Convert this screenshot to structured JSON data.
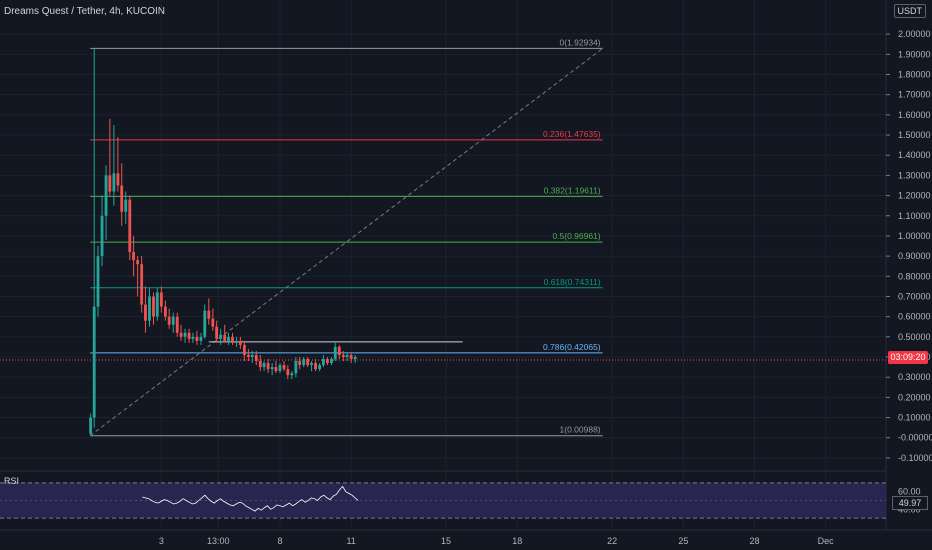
{
  "header": {
    "symbol_title": "Dreams Quest / Tether, 4h, KUCOIN",
    "currency": "USDT"
  },
  "price_axis": {
    "ticks": [
      "2.00000",
      "1.90000",
      "1.80000",
      "1.70000",
      "1.60000",
      "1.50000",
      "1.40000",
      "1.30000",
      "1.20000",
      "1.10000",
      "1.00000",
      "0.90000",
      "0.80000",
      "0.70000",
      "0.60000",
      "0.50000",
      "0.40000",
      "0.30000",
      "0.20000",
      "0.10000",
      "-0.00000",
      "-0.10000"
    ],
    "tick_values": [
      2.0,
      1.9,
      1.8,
      1.7,
      1.6,
      1.5,
      1.4,
      1.3,
      1.2,
      1.1,
      1.0,
      0.9,
      0.8,
      0.7,
      0.6,
      0.5,
      0.4,
      0.3,
      0.2,
      0.1,
      0.0,
      -0.1
    ],
    "last_price_tag": "03:09:20",
    "last_price": 0.385
  },
  "time_axis": {
    "labels": [
      {
        "text": "3",
        "x": 3
      },
      {
        "text": "13:00",
        "x": 5.4
      },
      {
        "text": "8",
        "x": 8
      },
      {
        "text": "11",
        "x": 11
      },
      {
        "text": "15",
        "x": 15
      },
      {
        "text": "18",
        "x": 18
      },
      {
        "text": "22",
        "x": 22
      },
      {
        "text": "25",
        "x": 25
      },
      {
        "text": "28",
        "x": 28
      },
      {
        "text": "Dec",
        "x": 31
      }
    ]
  },
  "colors": {
    "background": "#131722",
    "up": "#26a69a",
    "down": "#ef5350",
    "grid": "#1e222d",
    "rsi_fill": "#2a2451",
    "rsi_line": "#ffffff",
    "fib_0": "#787b86",
    "fib_236": "#f23645",
    "fib_382": "#4caf50",
    "fib_5": "#4caf50",
    "fib_618": "#089981",
    "fib_786": "#64b5f6",
    "fib_1": "#787b86"
  },
  "fib": {
    "x_start": 0.0,
    "x_end": 21.6,
    "levels": [
      {
        "label": "0(1.92934)",
        "value": 1.92934,
        "color": "#9598a1"
      },
      {
        "label": "0.236(1.47635)",
        "value": 1.47635,
        "color": "#f23645"
      },
      {
        "label": "0.382(1.19611)",
        "value": 1.19611,
        "color": "#4caf50"
      },
      {
        "label": "0.5(0.96961)",
        "value": 0.96961,
        "color": "#4caf50"
      },
      {
        "label": "0.618(0.74311)",
        "value": 0.74311,
        "color": "#089981"
      },
      {
        "label": "0.786(0.42065)",
        "value": 0.42065,
        "color": "#64b5f6"
      },
      {
        "label": "1(0.00988)",
        "value": 0.00988,
        "color": "#9598a1"
      }
    ],
    "trend_line": {
      "x1": 0.0,
      "y1": 0.00988,
      "x2": 21.6,
      "y2": 1.92934
    }
  },
  "extra_line": {
    "value": 0.475,
    "x_start": 5.0,
    "x_end": 15.7
  },
  "rsi": {
    "label": "RSI",
    "ticks": [
      "60.00",
      "40.00"
    ],
    "tick_values": [
      60,
      40
    ],
    "current_tag": "49.97",
    "range": [
      20,
      80
    ],
    "band": [
      30,
      70
    ],
    "values": [
      54,
      53,
      52,
      50,
      48,
      47,
      49,
      51,
      50,
      48,
      46,
      47,
      49,
      52,
      50,
      48,
      46,
      47,
      50,
      53,
      56,
      52,
      49,
      47,
      50,
      52,
      49,
      47,
      45,
      44,
      46,
      48,
      47,
      44,
      42,
      40,
      38,
      41,
      39,
      42,
      44,
      40,
      42,
      45,
      44,
      43,
      45,
      47,
      44,
      46,
      49,
      51,
      48,
      50,
      53,
      52,
      50,
      54,
      56,
      53,
      51,
      55,
      57,
      62,
      66,
      60,
      58,
      56,
      53,
      50
    ]
  },
  "chart_data": {
    "type": "candlestick",
    "title": "Dreams Quest / Tether, 4h, KUCOIN",
    "ylabel": "USDT",
    "ylim": [
      -0.15,
      2.08
    ],
    "xlim": [
      -3.8,
      33.5
    ],
    "candles": [
      {
        "x": 0.02,
        "o": 0.02,
        "h": 0.12,
        "l": 0.01,
        "c": 0.1
      },
      {
        "x": 0.17,
        "o": 0.1,
        "h": 1.93,
        "l": 0.05,
        "c": 0.65
      },
      {
        "x": 0.33,
        "o": 0.65,
        "h": 0.95,
        "l": 0.6,
        "c": 0.9
      },
      {
        "x": 0.5,
        "o": 0.9,
        "h": 1.2,
        "l": 0.85,
        "c": 1.1
      },
      {
        "x": 0.67,
        "o": 1.1,
        "h": 1.35,
        "l": 0.98,
        "c": 1.3
      },
      {
        "x": 0.83,
        "o": 1.3,
        "h": 1.58,
        "l": 1.2,
        "c": 1.22
      },
      {
        "x": 1.0,
        "o": 1.22,
        "h": 1.55,
        "l": 1.15,
        "c": 1.31
      },
      {
        "x": 1.17,
        "o": 1.31,
        "h": 1.49,
        "l": 1.22,
        "c": 1.25
      },
      {
        "x": 1.33,
        "o": 1.25,
        "h": 1.36,
        "l": 1.05,
        "c": 1.12
      },
      {
        "x": 1.5,
        "o": 1.12,
        "h": 1.22,
        "l": 1.06,
        "c": 1.18
      },
      {
        "x": 1.67,
        "o": 1.18,
        "h": 1.2,
        "l": 0.88,
        "c": 0.92
      },
      {
        "x": 1.83,
        "o": 0.92,
        "h": 1.0,
        "l": 0.8,
        "c": 0.88
      },
      {
        "x": 2.0,
        "o": 0.88,
        "h": 0.9,
        "l": 0.7,
        "c": 0.86
      },
      {
        "x": 2.17,
        "o": 0.86,
        "h": 0.9,
        "l": 0.62,
        "c": 0.66
      },
      {
        "x": 2.33,
        "o": 0.66,
        "h": 0.75,
        "l": 0.52,
        "c": 0.58
      },
      {
        "x": 2.5,
        "o": 0.58,
        "h": 0.74,
        "l": 0.55,
        "c": 0.7
      },
      {
        "x": 2.67,
        "o": 0.7,
        "h": 0.72,
        "l": 0.56,
        "c": 0.6
      },
      {
        "x": 2.83,
        "o": 0.6,
        "h": 0.74,
        "l": 0.58,
        "c": 0.72
      },
      {
        "x": 3.0,
        "o": 0.72,
        "h": 0.75,
        "l": 0.62,
        "c": 0.65
      },
      {
        "x": 3.17,
        "o": 0.65,
        "h": 0.68,
        "l": 0.58,
        "c": 0.6
      },
      {
        "x": 3.33,
        "o": 0.6,
        "h": 0.64,
        "l": 0.54,
        "c": 0.56
      },
      {
        "x": 3.5,
        "o": 0.56,
        "h": 0.62,
        "l": 0.52,
        "c": 0.6
      },
      {
        "x": 3.67,
        "o": 0.6,
        "h": 0.62,
        "l": 0.5,
        "c": 0.52
      },
      {
        "x": 3.83,
        "o": 0.52,
        "h": 0.56,
        "l": 0.48,
        "c": 0.5
      },
      {
        "x": 4.0,
        "o": 0.5,
        "h": 0.54,
        "l": 0.47,
        "c": 0.52
      },
      {
        "x": 4.17,
        "o": 0.52,
        "h": 0.54,
        "l": 0.47,
        "c": 0.49
      },
      {
        "x": 4.33,
        "o": 0.49,
        "h": 0.52,
        "l": 0.47,
        "c": 0.5
      },
      {
        "x": 4.5,
        "o": 0.5,
        "h": 0.53,
        "l": 0.46,
        "c": 0.48
      },
      {
        "x": 4.67,
        "o": 0.48,
        "h": 0.52,
        "l": 0.46,
        "c": 0.5
      },
      {
        "x": 4.83,
        "o": 0.5,
        "h": 0.66,
        "l": 0.49,
        "c": 0.63
      },
      {
        "x": 5.0,
        "o": 0.63,
        "h": 0.69,
        "l": 0.56,
        "c": 0.59
      },
      {
        "x": 5.17,
        "o": 0.59,
        "h": 0.64,
        "l": 0.53,
        "c": 0.55
      },
      {
        "x": 5.33,
        "o": 0.55,
        "h": 0.58,
        "l": 0.47,
        "c": 0.49
      },
      {
        "x": 5.5,
        "o": 0.49,
        "h": 0.54,
        "l": 0.46,
        "c": 0.51
      },
      {
        "x": 5.67,
        "o": 0.51,
        "h": 0.56,
        "l": 0.47,
        "c": 0.48
      },
      {
        "x": 5.83,
        "o": 0.48,
        "h": 0.52,
        "l": 0.46,
        "c": 0.5
      },
      {
        "x": 6.0,
        "o": 0.5,
        "h": 0.52,
        "l": 0.46,
        "c": 0.47
      },
      {
        "x": 6.17,
        "o": 0.47,
        "h": 0.5,
        "l": 0.45,
        "c": 0.48
      },
      {
        "x": 6.33,
        "o": 0.48,
        "h": 0.5,
        "l": 0.44,
        "c": 0.46
      },
      {
        "x": 6.5,
        "o": 0.46,
        "h": 0.48,
        "l": 0.38,
        "c": 0.41
      },
      {
        "x": 6.67,
        "o": 0.41,
        "h": 0.44,
        "l": 0.38,
        "c": 0.4
      },
      {
        "x": 6.83,
        "o": 0.4,
        "h": 0.43,
        "l": 0.37,
        "c": 0.41
      },
      {
        "x": 7.0,
        "o": 0.41,
        "h": 0.43,
        "l": 0.36,
        "c": 0.38
      },
      {
        "x": 7.17,
        "o": 0.38,
        "h": 0.41,
        "l": 0.33,
        "c": 0.35
      },
      {
        "x": 7.33,
        "o": 0.35,
        "h": 0.38,
        "l": 0.33,
        "c": 0.37
      },
      {
        "x": 7.5,
        "o": 0.37,
        "h": 0.39,
        "l": 0.32,
        "c": 0.34
      },
      {
        "x": 7.67,
        "o": 0.34,
        "h": 0.37,
        "l": 0.31,
        "c": 0.35
      },
      {
        "x": 7.83,
        "o": 0.35,
        "h": 0.38,
        "l": 0.32,
        "c": 0.33
      },
      {
        "x": 8.0,
        "o": 0.33,
        "h": 0.37,
        "l": 0.32,
        "c": 0.36
      },
      {
        "x": 8.17,
        "o": 0.36,
        "h": 0.38,
        "l": 0.33,
        "c": 0.34
      },
      {
        "x": 8.33,
        "o": 0.34,
        "h": 0.36,
        "l": 0.29,
        "c": 0.31
      },
      {
        "x": 8.5,
        "o": 0.31,
        "h": 0.33,
        "l": 0.29,
        "c": 0.32
      },
      {
        "x": 8.67,
        "o": 0.32,
        "h": 0.4,
        "l": 0.3,
        "c": 0.38
      },
      {
        "x": 8.83,
        "o": 0.38,
        "h": 0.4,
        "l": 0.34,
        "c": 0.36
      },
      {
        "x": 9.0,
        "o": 0.36,
        "h": 0.4,
        "l": 0.35,
        "c": 0.39
      },
      {
        "x": 9.17,
        "o": 0.39,
        "h": 0.4,
        "l": 0.35,
        "c": 0.36
      },
      {
        "x": 9.33,
        "o": 0.36,
        "h": 0.38,
        "l": 0.33,
        "c": 0.37
      },
      {
        "x": 9.5,
        "o": 0.37,
        "h": 0.39,
        "l": 0.33,
        "c": 0.34
      },
      {
        "x": 9.67,
        "o": 0.34,
        "h": 0.37,
        "l": 0.33,
        "c": 0.36
      },
      {
        "x": 9.83,
        "o": 0.36,
        "h": 0.41,
        "l": 0.35,
        "c": 0.39
      },
      {
        "x": 10.0,
        "o": 0.39,
        "h": 0.4,
        "l": 0.36,
        "c": 0.37
      },
      {
        "x": 10.17,
        "o": 0.37,
        "h": 0.4,
        "l": 0.36,
        "c": 0.39
      },
      {
        "x": 10.33,
        "o": 0.39,
        "h": 0.47,
        "l": 0.38,
        "c": 0.45
      },
      {
        "x": 10.5,
        "o": 0.45,
        "h": 0.46,
        "l": 0.39,
        "c": 0.41
      },
      {
        "x": 10.67,
        "o": 0.41,
        "h": 0.43,
        "l": 0.38,
        "c": 0.4
      },
      {
        "x": 10.83,
        "o": 0.4,
        "h": 0.42,
        "l": 0.38,
        "c": 0.41
      },
      {
        "x": 11.0,
        "o": 0.41,
        "h": 0.42,
        "l": 0.37,
        "c": 0.39
      },
      {
        "x": 11.17,
        "o": 0.39,
        "h": 0.41,
        "l": 0.37,
        "c": 0.4
      }
    ]
  }
}
